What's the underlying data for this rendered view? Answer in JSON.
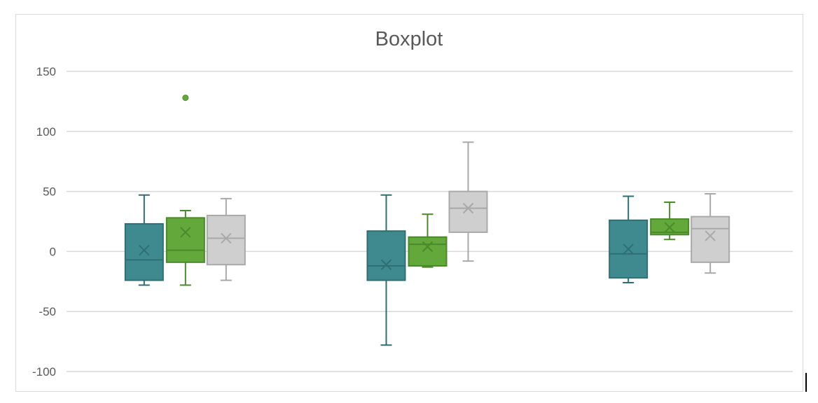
{
  "chart_data": {
    "type": "boxplot",
    "title": "Boxplot",
    "xlabel": "",
    "ylabel": "",
    "ylim": [
      -100,
      150
    ],
    "yticks": [
      150,
      100,
      50,
      0,
      -50,
      -100
    ],
    "grid": true,
    "legend": "none",
    "groups": [
      {
        "boxes": [
          {
            "min": -28,
            "q1": -24,
            "median": -7,
            "q3": 23,
            "max": 47,
            "mean": 1,
            "outliers": []
          },
          {
            "min": -28,
            "q1": -9,
            "median": 1,
            "q3": 28,
            "max": 34,
            "mean": 16,
            "outliers": [
              128
            ]
          },
          {
            "min": -24,
            "q1": -11,
            "median": 11,
            "q3": 30,
            "max": 44,
            "mean": 11,
            "outliers": []
          }
        ]
      },
      {
        "boxes": [
          {
            "min": -78,
            "q1": -24,
            "median": -12,
            "q3": 17,
            "max": 47,
            "mean": -11,
            "outliers": []
          },
          {
            "min": -13,
            "q1": -12,
            "median": 6,
            "q3": 12,
            "max": 31,
            "mean": 4,
            "outliers": []
          },
          {
            "min": -8,
            "q1": 16,
            "median": 36,
            "q3": 50,
            "max": 91,
            "mean": 36,
            "outliers": []
          }
        ]
      },
      {
        "boxes": [
          {
            "min": -26,
            "q1": -22,
            "median": -2,
            "q3": 26,
            "max": 46,
            "mean": 2,
            "outliers": []
          },
          {
            "min": 10,
            "q1": 14,
            "median": 16,
            "q3": 27,
            "max": 41,
            "mean": 20,
            "outliers": []
          },
          {
            "min": -18,
            "q1": -9,
            "median": 19,
            "q3": 29,
            "max": 48,
            "mean": 13,
            "outliers": []
          }
        ]
      }
    ],
    "series_colors": [
      {
        "fill": "#3e8a8f",
        "stroke": "#2f6f74"
      },
      {
        "fill": "#62a83a",
        "stroke": "#4a8a2a"
      },
      {
        "fill": "#d0cfd0",
        "stroke": "#a9a9a9"
      }
    ]
  }
}
